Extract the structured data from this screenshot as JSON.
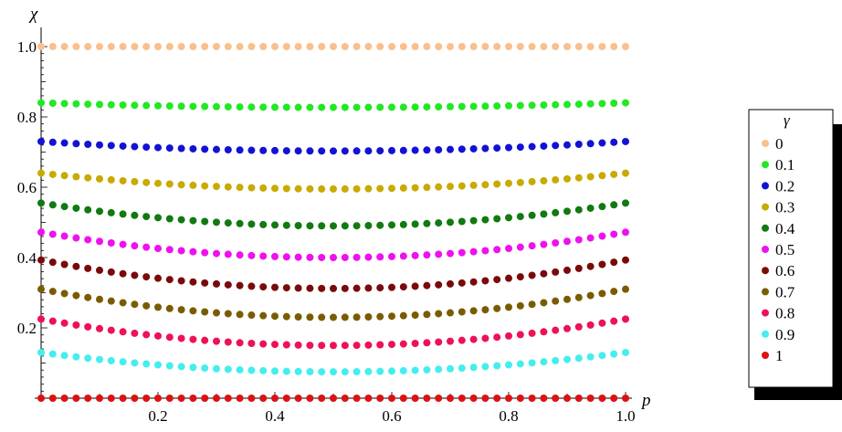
{
  "chart_data": {
    "type": "scatter",
    "xlabel": "p",
    "ylabel": "χ",
    "xlim": [
      0,
      1
    ],
    "ylim": [
      0,
      1
    ],
    "x_ticks": [
      "0.2",
      "0.4",
      "0.6",
      "0.8",
      "1.0"
    ],
    "y_ticks": [
      "0.2",
      "0.4",
      "0.6",
      "0.8",
      "1.0"
    ],
    "x_points": 51,
    "legend": {
      "title": "γ",
      "position": "right"
    },
    "series": [
      {
        "name": "0",
        "color": "#f9c08e",
        "edge": 1.0,
        "mid": 1.0
      },
      {
        "name": "0.1",
        "color": "#22e822",
        "edge": 0.84,
        "mid": 0.827
      },
      {
        "name": "0.2",
        "color": "#1212d4",
        "edge": 0.73,
        "mid": 0.703
      },
      {
        "name": "0.3",
        "color": "#c8aa00",
        "edge": 0.64,
        "mid": 0.595
      },
      {
        "name": "0.4",
        "color": "#117a11",
        "edge": 0.555,
        "mid": 0.49
      },
      {
        "name": "0.5",
        "color": "#ee11ee",
        "edge": 0.472,
        "mid": 0.4
      },
      {
        "name": "0.6",
        "color": "#7a0a0a",
        "edge": 0.393,
        "mid": 0.312
      },
      {
        "name": "0.7",
        "color": "#7a5c00",
        "edge": 0.31,
        "mid": 0.23
      },
      {
        "name": "0.8",
        "color": "#ee1155",
        "edge": 0.225,
        "mid": 0.15
      },
      {
        "name": "0.9",
        "color": "#44eeee",
        "edge": 0.13,
        "mid": 0.075
      },
      {
        "name": "1",
        "color": "#dd1111",
        "edge": 0.0,
        "mid": 0.0
      }
    ]
  }
}
